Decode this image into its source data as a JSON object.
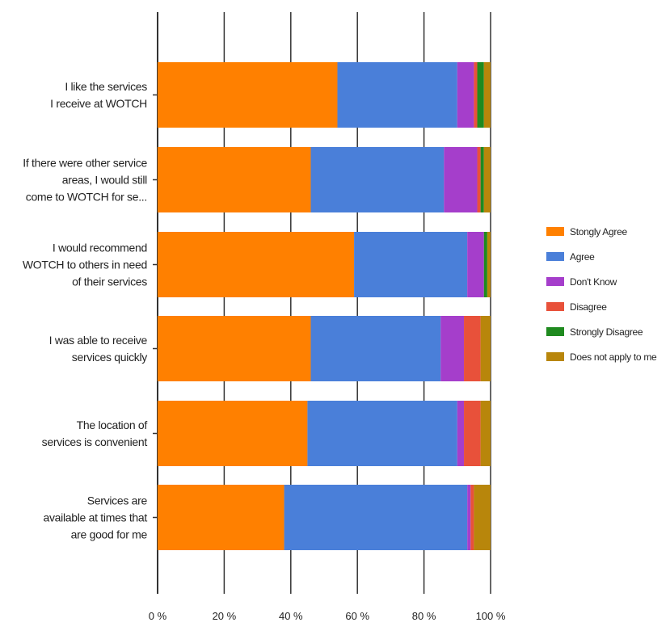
{
  "chart_data": {
    "type": "bar",
    "orientation": "horizontal",
    "stacked": true,
    "percent": true,
    "categories": [
      [
        "I like the services",
        "I receive at WOTCH"
      ],
      [
        "If there were other service",
        "areas, I would still",
        "come to WOTCH for se..."
      ],
      [
        "I would recommend",
        "WOTCH to others in need",
        "of their services"
      ],
      [
        "I was able to receive",
        "services quickly"
      ],
      [
        "The location of",
        "services is convenient"
      ],
      [
        "Services are",
        "available at times that",
        "are good for me"
      ]
    ],
    "series": [
      {
        "name": "Stongly Agree",
        "color": "#ff8000",
        "values": [
          54,
          46,
          59,
          46,
          45,
          38
        ]
      },
      {
        "name": "Agree",
        "color": "#4a7fd9",
        "values": [
          36,
          40,
          34,
          39,
          45,
          55
        ]
      },
      {
        "name": "Don't Know",
        "color": "#a53ecb",
        "values": [
          5,
          10,
          5,
          7,
          2,
          1
        ]
      },
      {
        "name": "Disagree",
        "color": "#e8513a",
        "values": [
          1,
          1,
          0,
          5,
          5,
          1
        ]
      },
      {
        "name": "Strongly Disagree",
        "color": "#1f8a1f",
        "values": [
          2,
          1,
          1,
          0,
          0,
          0
        ]
      },
      {
        "name": "Does not apply to me",
        "color": "#b8860b",
        "values": [
          2,
          2,
          1,
          3,
          3,
          5
        ]
      }
    ],
    "xlim": [
      0,
      100
    ],
    "xticks": [
      "0 %",
      "20 %",
      "40 %",
      "60 %",
      "80 %",
      "100 %"
    ],
    "grid": true,
    "legend_position": "right",
    "title": "",
    "xlabel": "",
    "ylabel": ""
  }
}
